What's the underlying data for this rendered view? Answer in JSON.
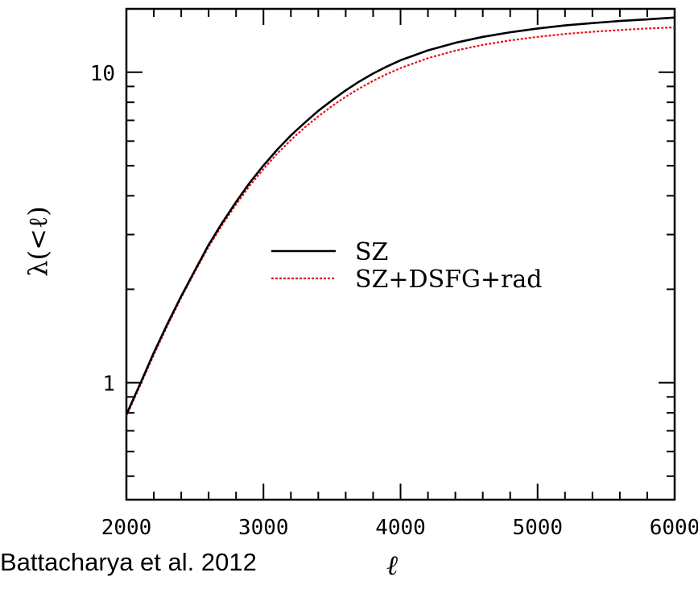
{
  "chart_data": {
    "type": "line",
    "xlabel": "ℓ",
    "ylabel": "λ(<ℓ)",
    "xlim": [
      2000,
      6000
    ],
    "ylim": [
      0.42,
      16
    ],
    "yscale": "log",
    "x_ticks": [
      2000,
      3000,
      4000,
      5000,
      6000
    ],
    "y_ticks": [
      1,
      10
    ],
    "legend_position": "center-right",
    "series": [
      {
        "name": "SZ",
        "color": "#000000",
        "style": "solid",
        "x": [
          2000,
          2100,
          2200,
          2300,
          2400,
          2500,
          2600,
          2700,
          2800,
          2900,
          3000,
          3100,
          3200,
          3300,
          3400,
          3500,
          3600,
          3700,
          3800,
          3900,
          4000,
          4200,
          4400,
          4600,
          4800,
          5000,
          5200,
          5400,
          5600,
          5800,
          6000
        ],
        "y": [
          0.79,
          0.99,
          1.25,
          1.55,
          1.9,
          2.3,
          2.78,
          3.28,
          3.82,
          4.41,
          5.01,
          5.63,
          6.26,
          6.87,
          7.51,
          8.12,
          8.74,
          9.34,
          9.9,
          10.43,
          10.93,
          11.76,
          12.44,
          13.0,
          13.45,
          13.83,
          14.15,
          14.4,
          14.62,
          14.8,
          15.0
        ]
      },
      {
        "name": "SZ+DSFG+rad",
        "color": "#e8141c",
        "style": "dotted",
        "x": [
          2000,
          2100,
          2200,
          2300,
          2400,
          2500,
          2600,
          2700,
          2800,
          2900,
          3000,
          3100,
          3200,
          3300,
          3400,
          3500,
          3600,
          3700,
          3800,
          3900,
          4000,
          4200,
          4400,
          4600,
          4800,
          5000,
          5200,
          5400,
          5600,
          5800,
          6000
        ],
        "y": [
          0.78,
          0.98,
          1.23,
          1.53,
          1.88,
          2.28,
          2.74,
          3.23,
          3.75,
          4.31,
          4.88,
          5.47,
          6.05,
          6.63,
          7.21,
          7.78,
          8.34,
          8.87,
          9.38,
          9.86,
          10.31,
          11.1,
          11.74,
          12.25,
          12.66,
          13.0,
          13.28,
          13.5,
          13.68,
          13.83,
          13.95
        ]
      }
    ]
  },
  "caption": "Battacharya et al. 2012"
}
